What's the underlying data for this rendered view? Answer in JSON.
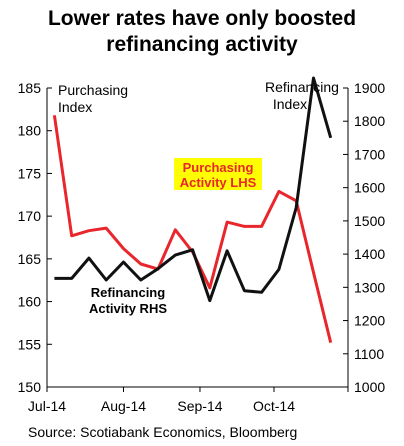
{
  "title_line1": "Lower rates have only boosted",
  "title_line2": "refinancing activity",
  "source": "Source: Scotiabank Economics, Bloomberg",
  "chart_data": {
    "type": "line",
    "title": "Lower rates have only boosted refinancing activity",
    "x_labels": [
      "Jul-14",
      "Aug-14",
      "Sep-14",
      "Oct-14"
    ],
    "left_axis": {
      "ylim": [
        150,
        185
      ],
      "ticks": [
        150,
        155,
        160,
        165,
        170,
        175,
        180,
        185
      ]
    },
    "right_axis": {
      "ylim": [
        1000,
        1900
      ],
      "ticks": [
        1000,
        1100,
        1200,
        1300,
        1400,
        1500,
        1600,
        1700,
        1800,
        1900
      ]
    },
    "annotations": {
      "purchasing_index_line1": "Purchasing",
      "purchasing_index_line2": "Index",
      "refinancing_index_line1": "Refinancing",
      "refinancing_index_line2": "Index",
      "purchasing_lhs_line1": "Purchasing",
      "purchasing_lhs_line2": "Activity LHS",
      "refinancing_rhs_line1": "Refinancing",
      "refinancing_rhs_line2": "Activity RHS"
    },
    "series": [
      {
        "name": "Purchasing Activity LHS",
        "axis": "left",
        "color": "#e8262b",
        "x": [
          "2014-07-04",
          "2014-07-11",
          "2014-07-18",
          "2014-07-25",
          "2014-08-01",
          "2014-08-08",
          "2014-08-15",
          "2014-08-22",
          "2014-08-29",
          "2014-09-05",
          "2014-09-12",
          "2014-09-19",
          "2014-09-26",
          "2014-10-03",
          "2014-10-10",
          "2014-10-17",
          "2014-10-24"
        ],
        "values": [
          181.8,
          167.7,
          168.3,
          168.6,
          166.2,
          164.4,
          163.8,
          168.4,
          165.8,
          161.6,
          169.3,
          168.8,
          168.8,
          172.9,
          171.8,
          163.4,
          155.2
        ]
      },
      {
        "name": "Refinancing Activity RHS",
        "axis": "right",
        "color": "#111111",
        "x": [
          "2014-07-04",
          "2014-07-11",
          "2014-07-18",
          "2014-07-25",
          "2014-08-01",
          "2014-08-08",
          "2014-08-15",
          "2014-08-22",
          "2014-08-29",
          "2014-09-05",
          "2014-09-12",
          "2014-09-19",
          "2014-09-26",
          "2014-10-03",
          "2014-10-10",
          "2014-10-17",
          "2014-10-24"
        ],
        "values": [
          1327,
          1327,
          1388,
          1322,
          1376,
          1322,
          1356,
          1397,
          1413,
          1260,
          1410,
          1290,
          1285,
          1354,
          1540,
          1930,
          1750
        ]
      }
    ]
  }
}
